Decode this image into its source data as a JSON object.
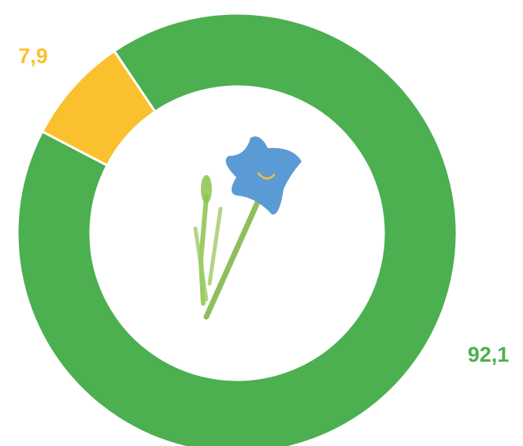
{
  "chart_data": {
    "type": "donut",
    "categories": [
      null,
      null
    ],
    "values": [
      7.9,
      92.1
    ],
    "value_labels": [
      "7,9",
      "92,1"
    ],
    "colors": [
      "#fbc02d",
      "#4caf50"
    ]
  }
}
